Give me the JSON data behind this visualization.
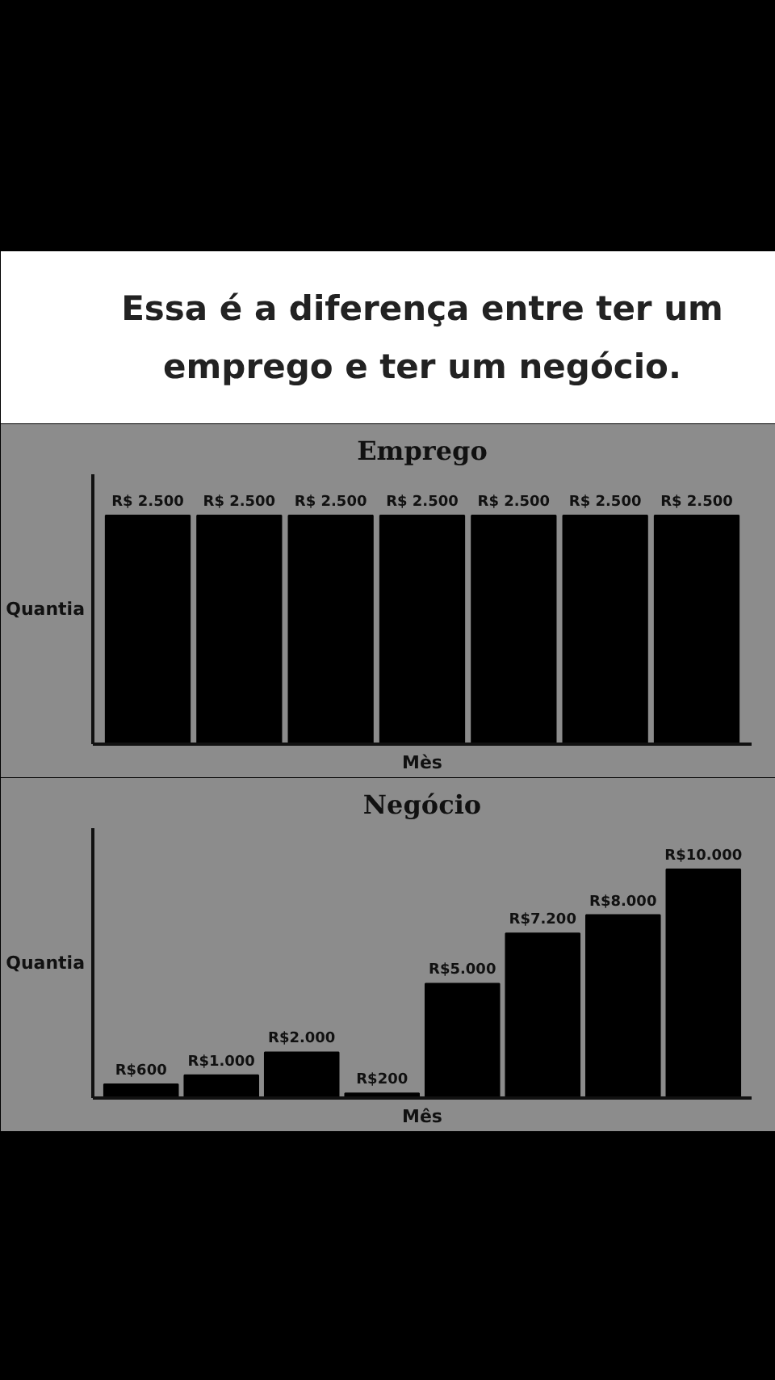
{
  "chart_data": [
    {
      "type": "other",
      "title": "Essa é a diferença entre ter um emprego e ter um negócio."
    },
    {
      "type": "bar",
      "title": "Emprego",
      "xlabel": "Mès",
      "ylabel": "Quantia",
      "categories": [
        null,
        null,
        null,
        null,
        null,
        null,
        null
      ],
      "values": [
        2500,
        2500,
        2500,
        2500,
        2500,
        2500,
        2500
      ],
      "value_labels": [
        "R$ 2.500",
        "R$ 2.500",
        "R$ 2.500",
        "R$ 2.500",
        "R$ 2.500",
        "R$ 2.500",
        "R$ 2.500"
      ],
      "color": "#000000"
    },
    {
      "type": "bar",
      "title": "Negócio",
      "xlabel": "Mês",
      "ylabel": "Quantia",
      "categories": [
        null,
        null,
        null,
        null,
        null,
        null,
        null,
        null
      ],
      "values": [
        600,
        1000,
        2000,
        200,
        5000,
        7200,
        8000,
        10000
      ],
      "value_labels": [
        "R$600",
        "R$1.000",
        "R$2.000",
        "R$200",
        "R$5.000",
        "R$7.200",
        "R$8.000",
        "R$10.000"
      ],
      "color": "#000000"
    }
  ]
}
